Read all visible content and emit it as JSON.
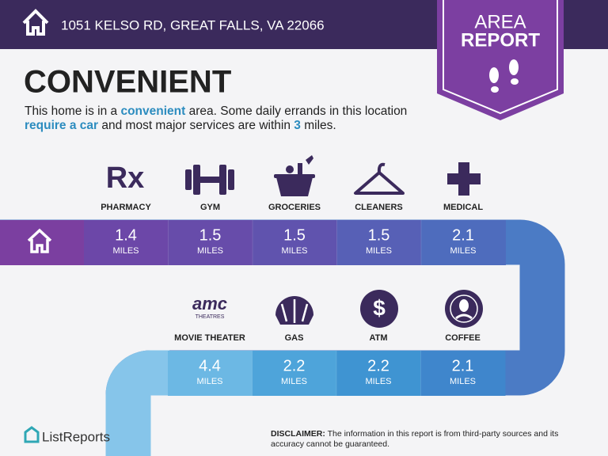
{
  "header": {
    "address": "1051 KELSO RD, GREAT FALLS, VA 22066"
  },
  "badge": {
    "line1": "AREA",
    "line2": "REPORT"
  },
  "title": "CONVENIENT",
  "description": [
    "This home is in a ",
    "convenient",
    " area. Some daily errands in this location ",
    "require a car",
    " and most major services are within ",
    "3",
    " miles."
  ],
  "row1": [
    {
      "label": "PHARMACY",
      "value": "1.4",
      "unit": "MILES"
    },
    {
      "label": "GYM",
      "value": "1.5",
      "unit": "MILES"
    },
    {
      "label": "GROCERIES",
      "value": "1.5",
      "unit": "MILES"
    },
    {
      "label": "CLEANERS",
      "value": "1.5",
      "unit": "MILES"
    },
    {
      "label": "MEDICAL",
      "value": "2.1",
      "unit": "MILES"
    }
  ],
  "row2": [
    {
      "label": "MOVIE THEATER",
      "value": "4.4",
      "unit": "MILES"
    },
    {
      "label": "GAS",
      "value": "2.2",
      "unit": "MILES"
    },
    {
      "label": "ATM",
      "value": "2.2",
      "unit": "MILES"
    },
    {
      "label": "COFFEE",
      "value": "2.1",
      "unit": "MILES"
    }
  ],
  "icons": {
    "pharmacy": "Rx",
    "movie_logo": "amc",
    "movie_sub": "THEATRES",
    "atm": "$"
  },
  "footer": {
    "brand": "ListReports",
    "disclaimer_label": "DISCLAIMER:",
    "disclaimer": " The information in this report is from third-party sources and its accuracy cannot be guaranteed."
  }
}
